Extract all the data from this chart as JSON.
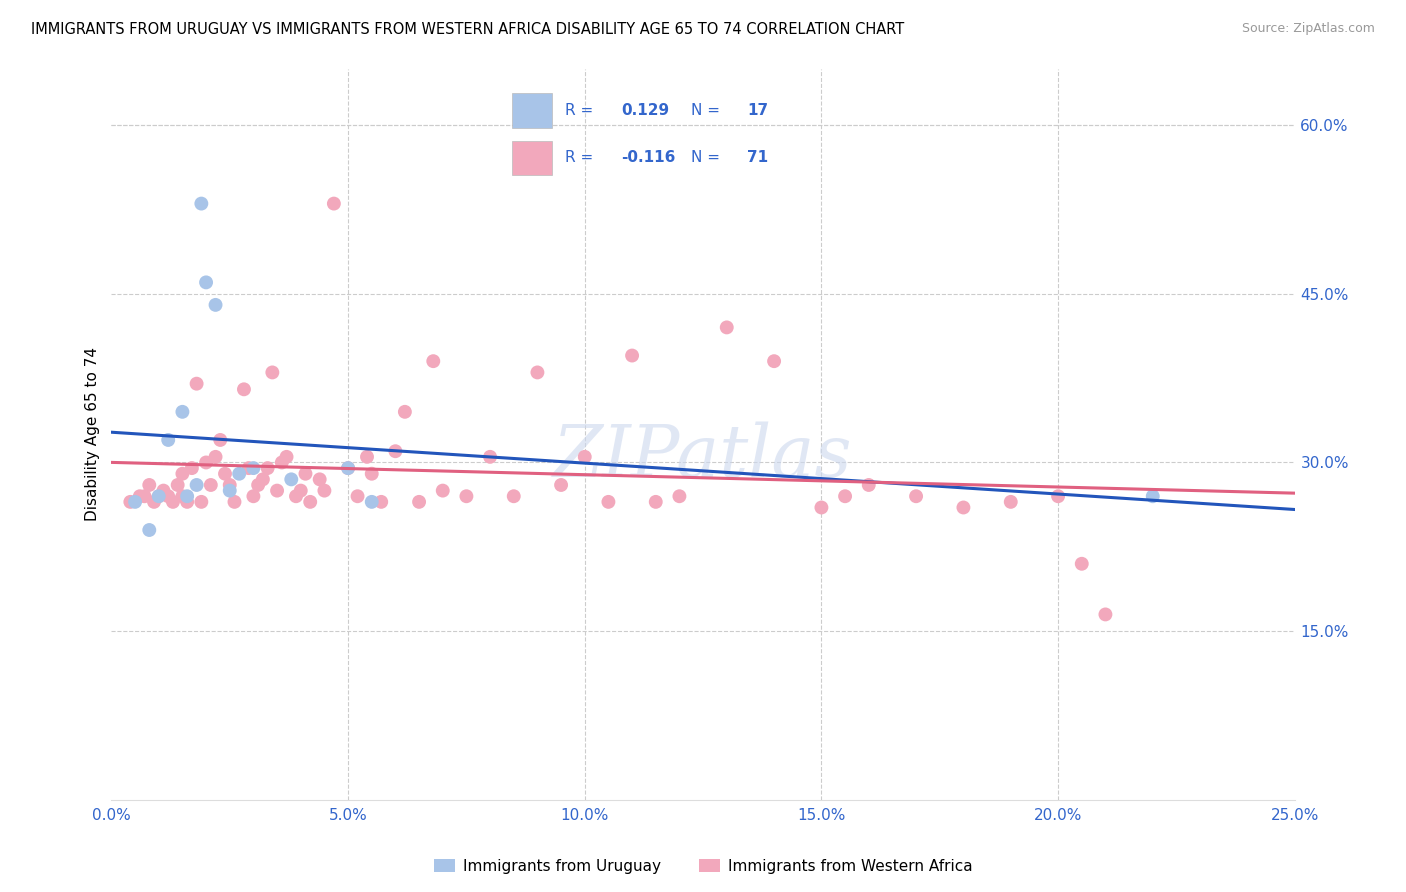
{
  "title": "IMMIGRANTS FROM URUGUAY VS IMMIGRANTS FROM WESTERN AFRICA DISABILITY AGE 65 TO 74 CORRELATION CHART",
  "source": "Source: ZipAtlas.com",
  "ylabel": "Disability Age 65 to 74",
  "r_uruguay": 0.129,
  "n_uruguay": 17,
  "r_western_africa": -0.116,
  "n_western_africa": 71,
  "xlim": [
    0.0,
    0.25
  ],
  "ylim": [
    0.0,
    0.65
  ],
  "xticks": [
    0.0,
    0.05,
    0.1,
    0.15,
    0.2,
    0.25
  ],
  "yticks": [
    0.15,
    0.3,
    0.45,
    0.6
  ],
  "ytick_labels": [
    "15.0%",
    "30.0%",
    "45.0%",
    "60.0%"
  ],
  "xtick_labels": [
    "0.0%",
    "5.0%",
    "10.0%",
    "15.0%",
    "20.0%",
    "25.0%"
  ],
  "color_uruguay": "#a8c4e8",
  "color_western_africa": "#f2a8bc",
  "color_trend_uruguay": "#2255bb",
  "color_trend_western_africa": "#e06080",
  "watermark": "ZIPatlas",
  "legend_label_uruguay": "Immigrants from Uruguay",
  "legend_label_western_africa": "Immigrants from Western Africa",
  "uruguay_x": [
    0.005,
    0.008,
    0.01,
    0.012,
    0.015,
    0.016,
    0.018,
    0.019,
    0.02,
    0.022,
    0.025,
    0.027,
    0.03,
    0.038,
    0.05,
    0.055,
    0.22
  ],
  "uruguay_y": [
    0.265,
    0.24,
    0.27,
    0.32,
    0.345,
    0.27,
    0.28,
    0.53,
    0.46,
    0.44,
    0.275,
    0.29,
    0.295,
    0.285,
    0.295,
    0.265,
    0.27
  ],
  "western_africa_x": [
    0.004,
    0.006,
    0.007,
    0.008,
    0.009,
    0.01,
    0.011,
    0.012,
    0.013,
    0.014,
    0.015,
    0.015,
    0.016,
    0.017,
    0.018,
    0.019,
    0.02,
    0.021,
    0.022,
    0.023,
    0.024,
    0.025,
    0.026,
    0.028,
    0.029,
    0.03,
    0.031,
    0.032,
    0.033,
    0.034,
    0.035,
    0.036,
    0.037,
    0.039,
    0.04,
    0.041,
    0.042,
    0.044,
    0.045,
    0.047,
    0.05,
    0.052,
    0.054,
    0.055,
    0.057,
    0.06,
    0.062,
    0.065,
    0.068,
    0.07,
    0.075,
    0.08,
    0.085,
    0.09,
    0.095,
    0.1,
    0.105,
    0.11,
    0.115,
    0.12,
    0.13,
    0.14,
    0.15,
    0.155,
    0.16,
    0.17,
    0.18,
    0.19,
    0.2,
    0.205,
    0.21
  ],
  "western_africa_y": [
    0.265,
    0.27,
    0.27,
    0.28,
    0.265,
    0.27,
    0.275,
    0.27,
    0.265,
    0.28,
    0.29,
    0.27,
    0.265,
    0.295,
    0.37,
    0.265,
    0.3,
    0.28,
    0.305,
    0.32,
    0.29,
    0.28,
    0.265,
    0.365,
    0.295,
    0.27,
    0.28,
    0.285,
    0.295,
    0.38,
    0.275,
    0.3,
    0.305,
    0.27,
    0.275,
    0.29,
    0.265,
    0.285,
    0.275,
    0.53,
    0.295,
    0.27,
    0.305,
    0.29,
    0.265,
    0.31,
    0.345,
    0.265,
    0.39,
    0.275,
    0.27,
    0.305,
    0.27,
    0.38,
    0.28,
    0.305,
    0.265,
    0.395,
    0.265,
    0.27,
    0.42,
    0.39,
    0.26,
    0.27,
    0.28,
    0.27,
    0.26,
    0.265,
    0.27,
    0.21,
    0.165
  ]
}
